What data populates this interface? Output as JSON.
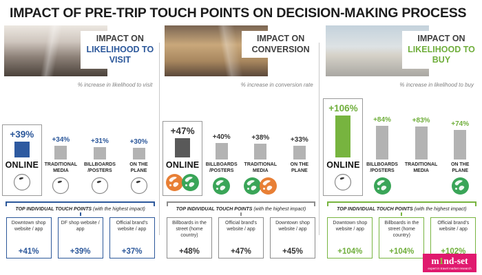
{
  "title": "IMPACT OF PRE-TRIP TOUCH POINTS ON DECISION-MAKING PROCESS",
  "colors": {
    "gray_bar": "#b3b3b3",
    "globe_green": "#3aa558",
    "globe_orange": "#e87f35",
    "logo_pink": "#e0196e",
    "logo_green": "#8dc63f"
  },
  "panels": [
    {
      "heading_prefix": "IMPACT ON",
      "heading": "LIKELIHOOD TO VISIT",
      "subtitle": "% increase in likelihood to visit",
      "colors": {
        "accent": "#2b579a",
        "bar": "#2e5aa0",
        "box_border": "#2b579a"
      },
      "bars": [
        {
          "label": "ONLINE",
          "display": "+39%",
          "value": 39,
          "icons": [
            "globe-outline"
          ]
        },
        {
          "label": "TRADITIONAL MEDIA",
          "display": "+34%",
          "value": 34,
          "icons": [
            "globe-outline"
          ]
        },
        {
          "label": "BILLBOARDS /POSTERS",
          "display": "+31%",
          "value": 31,
          "icons": [
            "globe-outline"
          ]
        },
        {
          "label": "ON THE PLANE",
          "display": "+30%",
          "value": 30,
          "icons": [
            "globe-outline"
          ]
        }
      ],
      "top_title": "TOP INDIVIDUAL TOUCH POINTS",
      "top_note": "(with the highest impact)",
      "top_points": [
        {
          "name": "Downtown shop website / app",
          "value": "+41%"
        },
        {
          "name": "DF shop website / app",
          "value": "+39%"
        },
        {
          "name": "Official brand's website / app",
          "value": "+37%"
        }
      ]
    },
    {
      "heading_prefix": "IMPACT ON",
      "heading": "CONVERSION",
      "subtitle": "% increase in conversion rate",
      "colors": {
        "accent": "#333333",
        "bar": "#595959",
        "box_border": "#8c8c8c"
      },
      "bars": [
        {
          "label": "ONLINE",
          "display": "+47%",
          "value": 47,
          "icons": [
            "globe-orange",
            "globe-green"
          ]
        },
        {
          "label": "BILLBOARDS /POSTERS",
          "display": "+40%",
          "value": 40,
          "icons": [
            "globe-green"
          ]
        },
        {
          "label": "TRADITIONAL MEDIA",
          "display": "+38%",
          "value": 38,
          "icons": [
            "globe-green",
            "globe-orange"
          ]
        },
        {
          "label": "ON THE PLANE",
          "display": "+33%",
          "value": 33,
          "icons": []
        }
      ],
      "top_title": "TOP INDIVIDUAL TOUCH POINTS",
      "top_note": "(with the highest impact)",
      "top_points": [
        {
          "name": "Billboards in the street (home country)",
          "value": "+48%"
        },
        {
          "name": "Official brand's website / app",
          "value": "+47%"
        },
        {
          "name": "Downtown shop website / app",
          "value": "+45%"
        }
      ]
    },
    {
      "heading_prefix": "IMPACT ON",
      "heading": "LIKELIHOOD TO BUY",
      "subtitle": "% increase in likelihood to buy",
      "colors": {
        "accent": "#6fae3b",
        "bar": "#77b43f",
        "box_border": "#77b43f"
      },
      "bars": [
        {
          "label": "ONLINE",
          "display": "+106%",
          "value": 106,
          "icons": [
            "globe-outline"
          ]
        },
        {
          "label": "BILLBOARDS /POSTERS",
          "display": "+84%",
          "value": 84,
          "icons": [
            "globe-green"
          ]
        },
        {
          "label": "TRADITIONAL MEDIA",
          "display": "+83%",
          "value": 83,
          "icons": []
        },
        {
          "label": "ON THE PLANE",
          "display": "+74%",
          "value": 74,
          "icons": [
            "globe-green"
          ]
        }
      ],
      "top_title": "TOP INDIVIDUAL TOUCH POINTS",
      "top_note": "(with the highest impact)",
      "top_points": [
        {
          "name": "Downtown shop website / app",
          "value": "+104%"
        },
        {
          "name": "Billboards in the street (home country)",
          "value": "+104%"
        },
        {
          "name": "Official brand's website / app",
          "value": "+102%"
        }
      ]
    }
  ],
  "logo": {
    "name": "m1nd-set",
    "part1": "m",
    "part2": "1",
    "part3": "nd-set",
    "tagline": "expert in travel market research"
  },
  "chart_data": [
    {
      "type": "bar",
      "title": "Impact on likelihood to visit",
      "ylabel": "% increase in likelihood to visit",
      "categories": [
        "Online",
        "Traditional media",
        "Billboards/posters",
        "On the plane"
      ],
      "values": [
        39,
        34,
        31,
        30
      ],
      "annotations": {
        "top_touch_points": {
          "Downtown shop website / app": 41,
          "DF shop website / app": 39,
          "Official brand's website / app": 37
        }
      }
    },
    {
      "type": "bar",
      "title": "Impact on conversion",
      "ylabel": "% increase in conversion rate",
      "categories": [
        "Online",
        "Billboards/posters",
        "Traditional media",
        "On the plane"
      ],
      "values": [
        47,
        40,
        38,
        33
      ],
      "annotations": {
        "top_touch_points": {
          "Billboards in the street (home country)": 48,
          "Official brand's website / app": 47,
          "Downtown shop website / app": 45
        }
      }
    },
    {
      "type": "bar",
      "title": "Impact on likelihood to buy",
      "ylabel": "% increase in likelihood to buy",
      "categories": [
        "Online",
        "Billboards/posters",
        "Traditional media",
        "On the plane"
      ],
      "values": [
        106,
        84,
        83,
        74
      ],
      "annotations": {
        "top_touch_points": {
          "Downtown shop website / app": 104,
          "Billboards in the street (home country)": 104,
          "Official brand's website / app": 102
        }
      }
    }
  ]
}
